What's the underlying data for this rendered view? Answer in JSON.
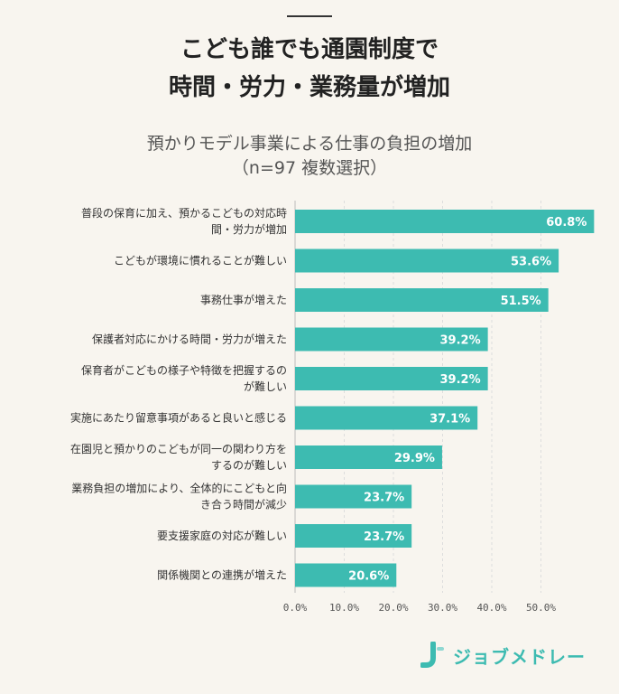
{
  "header": {
    "title_line1": "こども誰でも通園制度で",
    "title_line2": "時間・労力・業務量が増加"
  },
  "chart_data": {
    "type": "bar",
    "orientation": "horizontal",
    "title": "預かりモデル事業による仕事の負担の増加",
    "subtitle": "（n=97 複数選択）",
    "categories": [
      [
        "普段の保育に加え、預かるこどもの対応時",
        "間・労力が増加"
      ],
      [
        "こどもが環境に慣れることが難しい"
      ],
      [
        "事務仕事が増えた"
      ],
      [
        "保護者対応にかける時間・労力が増えた"
      ],
      [
        "保育者がこどもの様子や特徴を把握するの",
        "が難しい"
      ],
      [
        "実施にあたり留意事項があると良いと感じる"
      ],
      [
        "在園児と預かりのこどもが同一の関わり方を",
        "するのが難しい"
      ],
      [
        "業務負担の増加により、全体的にこどもと向",
        "き合う時間が減少"
      ],
      [
        "要支援家庭の対応が難しい"
      ],
      [
        "関係機関との連携が増えた"
      ]
    ],
    "values": [
      60.8,
      53.6,
      51.5,
      39.2,
      39.2,
      37.1,
      29.9,
      23.7,
      23.7,
      20.6
    ],
    "value_labels": [
      "60.8%",
      "53.6%",
      "51.5%",
      "39.2%",
      "39.2%",
      "37.1%",
      "29.9%",
      "23.7%",
      "23.7%",
      "20.6%"
    ],
    "xlim": [
      0,
      60
    ],
    "ticks": [
      0,
      10,
      20,
      30,
      40,
      50
    ],
    "tick_labels": [
      "0.0%",
      "10.0%",
      "20.0%",
      "30.0%",
      "40.0%",
      "50.0%"
    ],
    "grid": true,
    "bar_color": "#3dbbb1"
  },
  "logo": {
    "text": "ジョブメドレー",
    "color": "#3dbbb1"
  }
}
